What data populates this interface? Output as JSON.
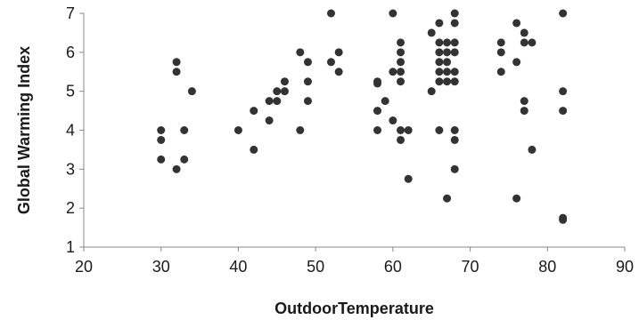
{
  "chart_data": {
    "type": "scatter",
    "xlabel": "OutdoorTemperature",
    "ylabel": "Global Warming Index",
    "xlim": [
      20,
      90
    ],
    "ylim": [
      1,
      7
    ],
    "xticks": [
      "20",
      "30",
      "40",
      "50",
      "60",
      "70",
      "80",
      "90"
    ],
    "yticks": [
      "1",
      "2",
      "3",
      "4",
      "5",
      "6",
      "7"
    ],
    "grid": false,
    "marker_color": "#333333",
    "axis_color": "#888888",
    "points": [
      {
        "x": 30,
        "y": 4.0
      },
      {
        "x": 30,
        "y": 3.75
      },
      {
        "x": 30,
        "y": 3.25
      },
      {
        "x": 32,
        "y": 5.75
      },
      {
        "x": 32,
        "y": 5.5
      },
      {
        "x": 32,
        "y": 3.0
      },
      {
        "x": 33,
        "y": 4.0
      },
      {
        "x": 33,
        "y": 3.25
      },
      {
        "x": 34,
        "y": 5.0
      },
      {
        "x": 40,
        "y": 4.0
      },
      {
        "x": 42,
        "y": 4.5
      },
      {
        "x": 42,
        "y": 3.5
      },
      {
        "x": 44,
        "y": 4.75
      },
      {
        "x": 44,
        "y": 4.25
      },
      {
        "x": 45,
        "y": 5.0
      },
      {
        "x": 45,
        "y": 4.75
      },
      {
        "x": 46,
        "y": 5.25
      },
      {
        "x": 46,
        "y": 5.0
      },
      {
        "x": 48,
        "y": 6.0
      },
      {
        "x": 48,
        "y": 4.0
      },
      {
        "x": 49,
        "y": 5.75
      },
      {
        "x": 49,
        "y": 5.25
      },
      {
        "x": 49,
        "y": 4.75
      },
      {
        "x": 52,
        "y": 7.0
      },
      {
        "x": 52,
        "y": 5.75
      },
      {
        "x": 53,
        "y": 6.0
      },
      {
        "x": 53,
        "y": 5.5
      },
      {
        "x": 58,
        "y": 5.25
      },
      {
        "x": 58,
        "y": 5.2
      },
      {
        "x": 58,
        "y": 4.5
      },
      {
        "x": 58,
        "y": 4.0
      },
      {
        "x": 59,
        "y": 4.75
      },
      {
        "x": 60,
        "y": 7.0
      },
      {
        "x": 60,
        "y": 5.5
      },
      {
        "x": 60,
        "y": 4.25
      },
      {
        "x": 61,
        "y": 6.25
      },
      {
        "x": 61,
        "y": 6.0
      },
      {
        "x": 61,
        "y": 5.75
      },
      {
        "x": 61,
        "y": 5.5
      },
      {
        "x": 61,
        "y": 5.25
      },
      {
        "x": 61,
        "y": 4.0
      },
      {
        "x": 61,
        "y": 3.75
      },
      {
        "x": 62,
        "y": 4.0
      },
      {
        "x": 62,
        "y": 2.75
      },
      {
        "x": 65,
        "y": 6.5
      },
      {
        "x": 65,
        "y": 5.0
      },
      {
        "x": 66,
        "y": 6.75
      },
      {
        "x": 66,
        "y": 6.25
      },
      {
        "x": 66,
        "y": 6.0
      },
      {
        "x": 66,
        "y": 5.75
      },
      {
        "x": 66,
        "y": 5.5
      },
      {
        "x": 66,
        "y": 5.25
      },
      {
        "x": 66,
        "y": 4.0
      },
      {
        "x": 67,
        "y": 6.25
      },
      {
        "x": 67,
        "y": 6.0
      },
      {
        "x": 67,
        "y": 5.75
      },
      {
        "x": 67,
        "y": 5.5
      },
      {
        "x": 67,
        "y": 5.25
      },
      {
        "x": 67,
        "y": 2.25
      },
      {
        "x": 68,
        "y": 7.0
      },
      {
        "x": 68,
        "y": 6.75
      },
      {
        "x": 68,
        "y": 6.25
      },
      {
        "x": 68,
        "y": 6.0
      },
      {
        "x": 68,
        "y": 5.5
      },
      {
        "x": 68,
        "y": 5.25
      },
      {
        "x": 68,
        "y": 4.0
      },
      {
        "x": 68,
        "y": 3.75
      },
      {
        "x": 68,
        "y": 3.0
      },
      {
        "x": 74,
        "y": 6.25
      },
      {
        "x": 74,
        "y": 6.0
      },
      {
        "x": 74,
        "y": 5.5
      },
      {
        "x": 76,
        "y": 6.75
      },
      {
        "x": 76,
        "y": 5.75
      },
      {
        "x": 76,
        "y": 2.25
      },
      {
        "x": 77,
        "y": 6.5
      },
      {
        "x": 77,
        "y": 6.25
      },
      {
        "x": 77,
        "y": 4.75
      },
      {
        "x": 77,
        "y": 4.5
      },
      {
        "x": 78,
        "y": 6.25
      },
      {
        "x": 78,
        "y": 3.5
      },
      {
        "x": 82,
        "y": 7.0
      },
      {
        "x": 82,
        "y": 5.0
      },
      {
        "x": 82,
        "y": 4.5
      },
      {
        "x": 82,
        "y": 1.75
      },
      {
        "x": 82,
        "y": 1.7
      }
    ]
  }
}
